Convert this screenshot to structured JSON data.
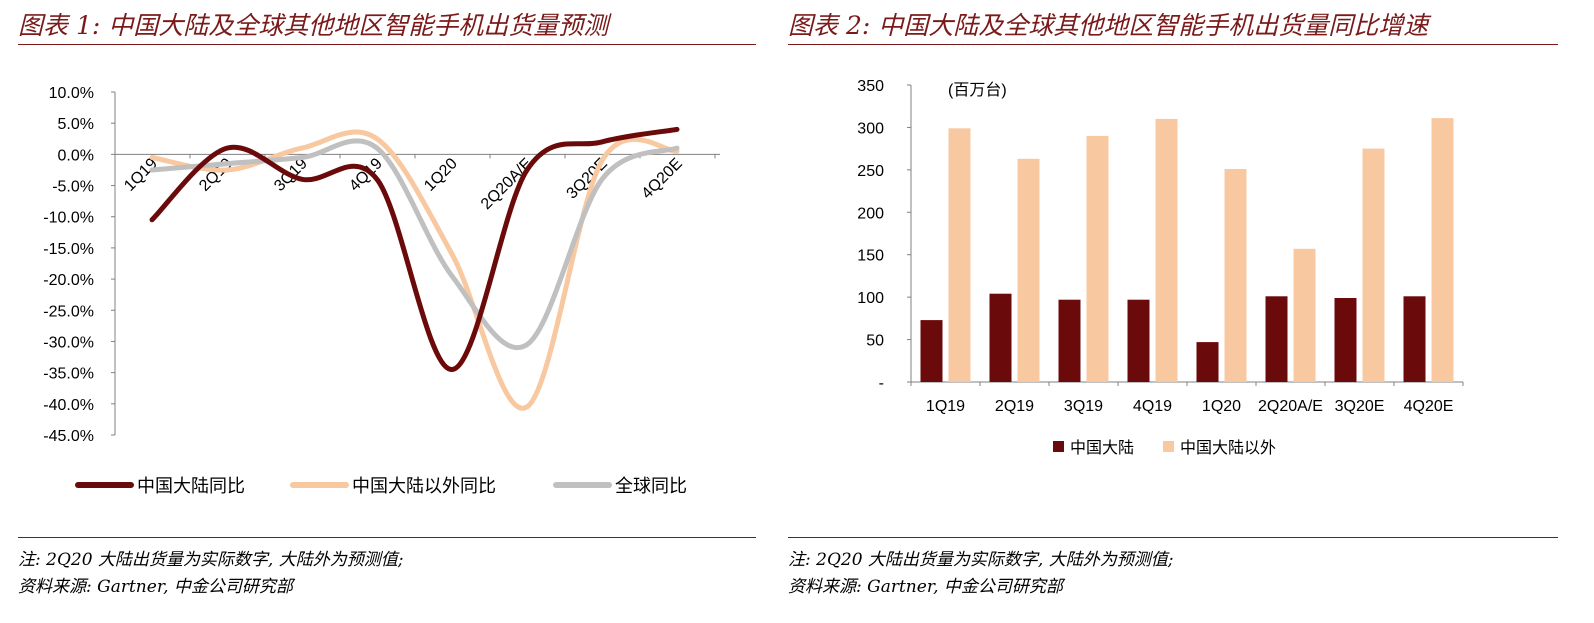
{
  "colors": {
    "title": "#7a1a1a",
    "china": "#6b0a0a",
    "outside": "#f8c8a0",
    "global": "#c0c0c0"
  },
  "chart_data": [
    {
      "type": "line",
      "title": "图表 1: 中国大陆及全球其他地区智能手机出货量预测",
      "categories": [
        "1Q19",
        "2Q19",
        "3Q19",
        "4Q19",
        "1Q20",
        "2Q20A/E",
        "3Q20E",
        "4Q20E"
      ],
      "y_tick_labels": [
        "10.0%",
        "5.0%",
        "0.0%",
        "-5.0%",
        "-10.0%",
        "-15.0%",
        "-20.0%",
        "-25.0%",
        "-30.0%",
        "-35.0%",
        "-40.0%",
        "-45.0%"
      ],
      "ylim": [
        -45,
        10
      ],
      "y_unit": "%",
      "grid": false,
      "legend_position": "bottom",
      "series": [
        {
          "name": "中国大陆同比",
          "color": "#6b0a0a",
          "values": [
            -10.5,
            1.0,
            -4.0,
            -4.0,
            -34.5,
            -2.5,
            2.0,
            4.0
          ]
        },
        {
          "name": "中国大陆以外同比",
          "color": "#f8c8a0",
          "values": [
            -0.5,
            -2.5,
            1.0,
            2.5,
            -16.0,
            -40.5,
            -1.0,
            0.5
          ]
        },
        {
          "name": "全球同比",
          "color": "#c0c0c0",
          "values": [
            -2.5,
            -1.5,
            -0.5,
            1.0,
            -19.5,
            -30.5,
            -4.0,
            1.0
          ]
        }
      ]
    },
    {
      "type": "bar",
      "title": "图表 2: 中国大陆及全球其他地区智能手机出货量同比增速",
      "unit_label": "(百万台)",
      "categories": [
        "1Q19",
        "2Q19",
        "3Q19",
        "4Q19",
        "1Q20",
        "2Q20A/E",
        "3Q20E",
        "4Q20E"
      ],
      "y_tick_labels": [
        "350",
        "300",
        "250",
        "200",
        "150",
        "100",
        "50",
        "-"
      ],
      "ylim": [
        0,
        350
      ],
      "grid": false,
      "legend_position": "bottom",
      "series": [
        {
          "name": "中国大陆",
          "color": "#6b0a0a",
          "values": [
            73,
            104,
            97,
            97,
            47,
            101,
            99,
            101
          ]
        },
        {
          "name": "中国大陆以外",
          "color": "#f8c8a0",
          "values": [
            299,
            263,
            290,
            310,
            251,
            157,
            275,
            311
          ]
        }
      ]
    }
  ],
  "notes": {
    "left_line1": "注: 2Q20 大陆出货量为实际数字, 大陆外为预测值;",
    "left_line2": "资料来源: Gartner, 中金公司研究部",
    "right_line1": "注: 2Q20 大陆出货量为实际数字, 大陆外为预测值;",
    "right_line2": "资料来源: Gartner, 中金公司研究部"
  }
}
